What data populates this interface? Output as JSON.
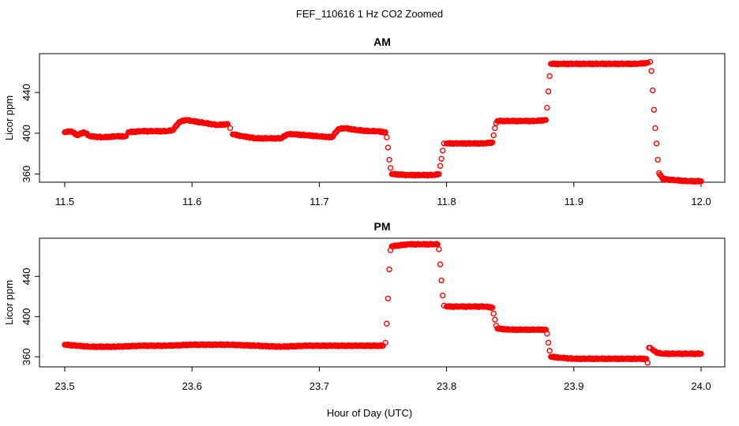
{
  "figure": {
    "suptitle": "FEF_110616  1 Hz CO2 Zoomed",
    "xlabel": "Hour of Day (UTC)"
  },
  "chart_data": [
    {
      "type": "scatter",
      "title": "AM",
      "xlabel": "",
      "ylabel": "Licor ppm",
      "xlim": [
        11.5,
        12.0
      ],
      "ylim": [
        352,
        478
      ],
      "xticks": [
        "11.5",
        "11.6",
        "11.7",
        "11.8",
        "11.9",
        "12.0"
      ],
      "yticks": [
        "360",
        "400",
        "440"
      ],
      "grid": false,
      "series": [
        {
          "marker": "open-circle",
          "color": "#ff0000",
          "points": [
            [
              11.5,
              401
            ],
            [
              11.505,
              402
            ],
            [
              11.51,
              398
            ],
            [
              11.515,
              401
            ],
            [
              11.52,
              397
            ],
            [
              11.53,
              396
            ],
            [
              11.54,
              397
            ],
            [
              11.548,
              397
            ],
            [
              11.55,
              401
            ],
            [
              11.56,
              402
            ],
            [
              11.57,
              402
            ],
            [
              11.58,
              402
            ],
            [
              11.585,
              403
            ],
            [
              11.59,
              411
            ],
            [
              11.595,
              413
            ],
            [
              11.6,
              412
            ],
            [
              11.61,
              410
            ],
            [
              11.62,
              408
            ],
            [
              11.628,
              409
            ],
            [
              11.63,
              405
            ],
            [
              11.632,
              399
            ],
            [
              11.64,
              397
            ],
            [
              11.65,
              395
            ],
            [
              11.66,
              395
            ],
            [
              11.67,
              395
            ],
            [
              11.675,
              399
            ],
            [
              11.68,
              399
            ],
            [
              11.69,
              398
            ],
            [
              11.7,
              397
            ],
            [
              11.71,
              396
            ],
            [
              11.715,
              404
            ],
            [
              11.72,
              405
            ],
            [
              11.73,
              403
            ],
            [
              11.74,
              402
            ],
            [
              11.745,
              402
            ],
            [
              11.752,
              401
            ],
            [
              11.753,
              396
            ],
            [
              11.754,
              386
            ],
            [
              11.755,
              374
            ],
            [
              11.756,
              366
            ],
            [
              11.757,
              360
            ],
            [
              11.77,
              359
            ],
            [
              11.78,
              359
            ],
            [
              11.79,
              359
            ],
            [
              11.794,
              360
            ],
            [
              11.795,
              368
            ],
            [
              11.796,
              375
            ],
            [
              11.797,
              383
            ],
            [
              11.798,
              390
            ],
            [
              11.8,
              390
            ],
            [
              11.81,
              390
            ],
            [
              11.82,
              390
            ],
            [
              11.83,
              390
            ],
            [
              11.836,
              391
            ],
            [
              11.837,
              398
            ],
            [
              11.838,
              405
            ],
            [
              11.839,
              410
            ],
            [
              11.84,
              412
            ],
            [
              11.85,
              412
            ],
            [
              11.86,
              412
            ],
            [
              11.87,
              412
            ],
            [
              11.878,
              413
            ],
            [
              11.879,
              425
            ],
            [
              11.88,
              441
            ],
            [
              11.881,
              456
            ],
            [
              11.882,
              468
            ],
            [
              11.89,
              468
            ],
            [
              11.9,
              468
            ],
            [
              11.91,
              468
            ],
            [
              11.92,
              468
            ],
            [
              11.93,
              468
            ],
            [
              11.94,
              468
            ],
            [
              11.95,
              468
            ],
            [
              11.958,
              469
            ],
            [
              11.96,
              470
            ],
            [
              11.961,
              461
            ],
            [
              11.962,
              442
            ],
            [
              11.963,
              423
            ],
            [
              11.964,
              405
            ],
            [
              11.965,
              390
            ],
            [
              11.966,
              374
            ],
            [
              11.967,
              361
            ],
            [
              11.97,
              355
            ],
            [
              11.98,
              354
            ],
            [
              11.99,
              353
            ],
            [
              12.0,
              353
            ]
          ]
        }
      ]
    },
    {
      "type": "scatter",
      "title": "PM",
      "xlabel": "",
      "ylabel": "Licor ppm",
      "xlim": [
        23.5,
        24.0
      ],
      "ylim": [
        350,
        478
      ],
      "xticks": [
        "23.5",
        "23.6",
        "23.7",
        "23.8",
        "23.9",
        "24.0"
      ],
      "yticks": [
        "360",
        "400",
        "440"
      ],
      "grid": false,
      "series": [
        {
          "marker": "open-circle",
          "color": "#ff0000",
          "points": [
            [
              23.5,
              372
            ],
            [
              23.51,
              371
            ],
            [
              23.52,
              370
            ],
            [
              23.54,
              370
            ],
            [
              23.56,
              371
            ],
            [
              23.58,
              371
            ],
            [
              23.6,
              372
            ],
            [
              23.62,
              372
            ],
            [
              23.63,
              372
            ],
            [
              23.65,
              371
            ],
            [
              23.67,
              370
            ],
            [
              23.69,
              371
            ],
            [
              23.71,
              371
            ],
            [
              23.73,
              371
            ],
            [
              23.75,
              371
            ],
            [
              23.752,
              374
            ],
            [
              23.753,
              393
            ],
            [
              23.754,
              418
            ],
            [
              23.755,
              447
            ],
            [
              23.756,
              466
            ],
            [
              23.757,
              470
            ],
            [
              23.77,
              472
            ],
            [
              23.78,
              472
            ],
            [
              23.79,
              472
            ],
            [
              23.793,
              472
            ],
            [
              23.794,
              467
            ],
            [
              23.795,
              452
            ],
            [
              23.796,
              436
            ],
            [
              23.797,
              421
            ],
            [
              23.798,
              411
            ],
            [
              23.8,
              410
            ],
            [
              23.81,
              410
            ],
            [
              23.82,
              410
            ],
            [
              23.83,
              410
            ],
            [
              23.836,
              409
            ],
            [
              23.837,
              403
            ],
            [
              23.838,
              397
            ],
            [
              23.839,
              391
            ],
            [
              23.84,
              388
            ],
            [
              23.85,
              387
            ],
            [
              23.86,
              387
            ],
            [
              23.87,
              387
            ],
            [
              23.878,
              387
            ],
            [
              23.879,
              383
            ],
            [
              23.88,
              374
            ],
            [
              23.881,
              366
            ],
            [
              23.882,
              360
            ],
            [
              23.89,
              359
            ],
            [
              23.9,
              358
            ],
            [
              23.91,
              358
            ],
            [
              23.92,
              358
            ],
            [
              23.93,
              358
            ],
            [
              23.94,
              358
            ],
            [
              23.95,
              358
            ],
            [
              23.957,
              358
            ],
            [
              23.958,
              354
            ],
            [
              23.959,
              369
            ],
            [
              23.96,
              369
            ],
            [
              23.962,
              367
            ],
            [
              23.965,
              364
            ],
            [
              23.97,
              363
            ],
            [
              23.98,
              363
            ],
            [
              23.99,
              363
            ],
            [
              24.0,
              363
            ]
          ]
        }
      ]
    }
  ]
}
